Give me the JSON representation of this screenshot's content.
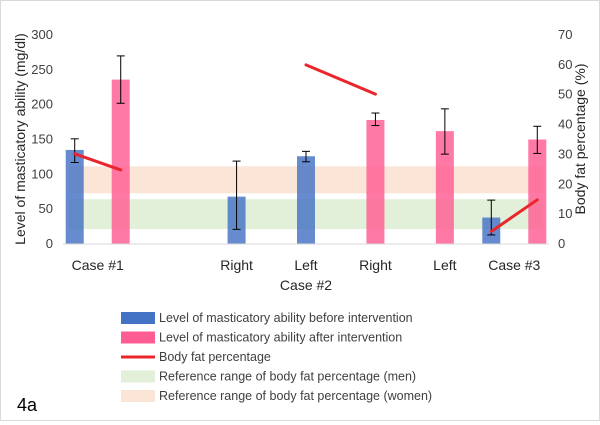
{
  "panel_label": "4a",
  "chart_data": {
    "type": "bar",
    "x_labels": [
      "Case #1",
      "Right",
      "Left",
      "Right",
      "Left",
      "Case #3"
    ],
    "group_label": "Case #2",
    "y_left": {
      "label": "Level of masticatory ability (mg/dl)",
      "lim": [
        0,
        300
      ],
      "ticks": [
        0,
        50,
        100,
        150,
        200,
        250,
        300
      ]
    },
    "y_right": {
      "label": "Body fat percentage (%)",
      "lim": [
        0,
        70
      ],
      "ticks": [
        0,
        10,
        20,
        30,
        40,
        50,
        60,
        70
      ]
    },
    "series": [
      {
        "name": "Level of masticatory ability before intervention",
        "color": "#4472c4",
        "points": [
          {
            "x": "Case #1",
            "value": 135,
            "err_low": 117,
            "err_high": 151
          },
          {
            "x": "Right",
            "value": 68,
            "err_low": 21,
            "err_high": 119
          },
          {
            "x": "Left",
            "value": 126,
            "err_low": 118,
            "err_high": 133
          },
          {
            "x": "Case #3",
            "value": 38,
            "err_low": 13,
            "err_high": 63
          }
        ]
      },
      {
        "name": "Level of masticatory ability after intervention",
        "color": "#ff5c93",
        "points": [
          {
            "x": "Case #1",
            "value": 236,
            "err_low": 202,
            "err_high": 270
          },
          {
            "x": "Right",
            "value": 178,
            "err_low": 170,
            "err_high": 188
          },
          {
            "x": "Left",
            "value": 162,
            "err_low": 129,
            "err_high": 194
          },
          {
            "x": "Case #3",
            "value": 150,
            "err_low": 130,
            "err_high": 169
          }
        ]
      },
      {
        "name": "Body fat percentage",
        "color": "#e8262b",
        "type": "line",
        "axis": "right",
        "segments": [
          [
            {
              "x": "Case #1",
              "position": "before",
              "value": 30.2
            },
            {
              "x": "Case #1",
              "position": "after",
              "value": 24.8
            }
          ],
          [
            {
              "x": "Left",
              "position": "before",
              "value": 60.0
            },
            {
              "x": "Right",
              "position": "after",
              "value": 50.2
            }
          ],
          [
            {
              "x": "Case #3",
              "position": "before",
              "value": 4.2
            },
            {
              "x": "Case #3",
              "position": "after",
              "value": 14.8
            }
          ]
        ]
      }
    ],
    "reference_bands": [
      {
        "name": "Reference range of body fat percentage (men)",
        "axis": "right",
        "range": [
          5,
          15
        ],
        "color": "#e2f0d9"
      },
      {
        "name": "Reference range of body fat percentage (women)",
        "axis": "right",
        "range": [
          17,
          26
        ],
        "color": "#fbe5d6"
      }
    ],
    "legend_position": "bottom"
  }
}
